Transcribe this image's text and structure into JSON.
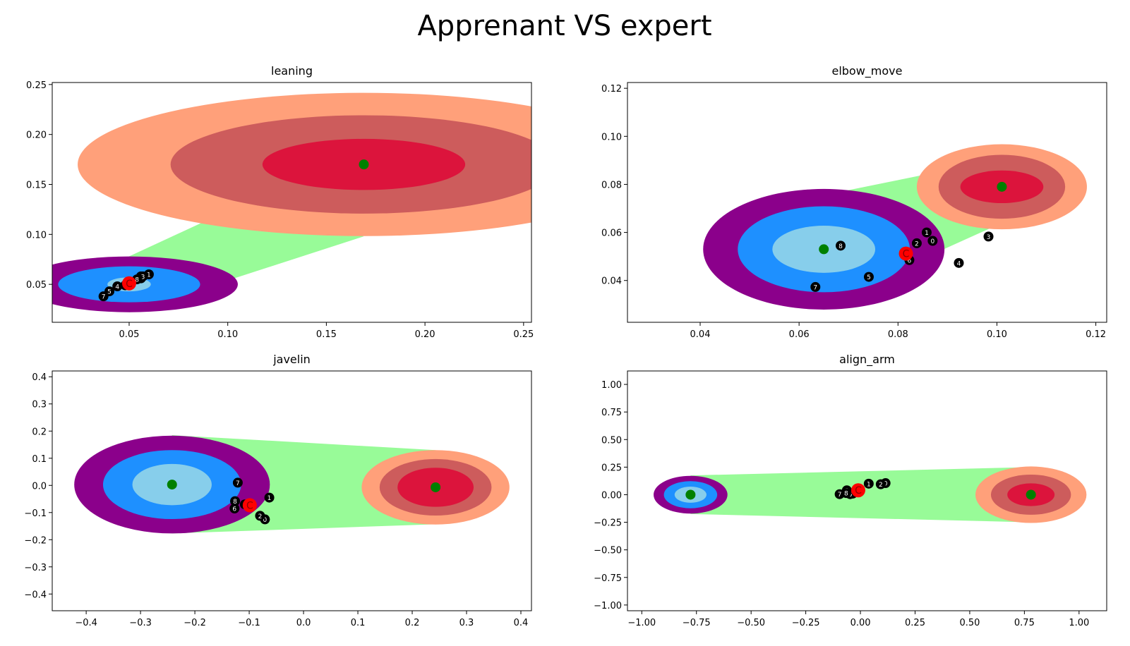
{
  "figure": {
    "title": "Apprenant VS expert"
  },
  "colors": {
    "expert_outer": "#ffa07a",
    "expert_mid": "#cd5c5c",
    "expert_inner": "#dc143c",
    "learner_outer": "#8b008b",
    "learner_mid": "#1e90ff",
    "learner_inner": "#87ceeb",
    "corridor": "#98fb98",
    "center": "#008000",
    "point": "#000000",
    "current": "#ff0000"
  },
  "chart_data": [
    {
      "type": "scatter",
      "title": "leaning",
      "xlim": [
        0.011,
        0.254
      ],
      "ylim": [
        0.012,
        0.252
      ],
      "xticks": [
        0.05,
        0.1,
        0.15,
        0.2,
        0.25
      ],
      "yticks": [
        0.05,
        0.1,
        0.15,
        0.2,
        0.25
      ],
      "xtick_labels": [
        "0.05",
        "0.10",
        "0.15",
        "0.20",
        "0.25"
      ],
      "ytick_labels": [
        "0.05",
        "0.10",
        "0.15",
        "0.20",
        "0.25"
      ],
      "grid": false,
      "learner": {
        "center": [
          0.05,
          0.05
        ],
        "radii": [
          [
            0.0551,
            0.0279
          ],
          [
            0.036,
            0.018
          ],
          [
            0.011,
            0.007
          ]
        ]
      },
      "expert": {
        "center": [
          0.169,
          0.17
        ],
        "radii": [
          [
            0.1451,
            0.0717
          ],
          [
            0.098,
            0.0492
          ],
          [
            0.0514,
            0.0256
          ]
        ]
      },
      "corridor": [
        [
          0.05,
          0.078
        ],
        [
          0.12,
          0.142
        ],
        [
          0.169,
          0.098
        ],
        [
          0.05,
          0.022
        ]
      ],
      "points": [
        {
          "label": "0",
          "x": 0.056,
          "y": 0.058
        },
        {
          "label": "1",
          "x": 0.06,
          "y": 0.06
        },
        {
          "label": "2",
          "x": 0.056,
          "y": 0.056
        },
        {
          "label": "3",
          "x": 0.057,
          "y": 0.058
        },
        {
          "label": "4",
          "x": 0.044,
          "y": 0.048
        },
        {
          "label": "5",
          "x": 0.04,
          "y": 0.043
        },
        {
          "label": "6",
          "x": 0.048,
          "y": 0.049
        },
        {
          "label": "7",
          "x": 0.037,
          "y": 0.038
        },
        {
          "label": "8",
          "x": 0.054,
          "y": 0.055
        }
      ],
      "current": {
        "label": "C",
        "x": 0.05,
        "y": 0.051
      }
    },
    {
      "type": "scatter",
      "title": "elbow_move",
      "xlim": [
        0.0253,
        0.1222
      ],
      "ylim": [
        0.0226,
        0.1224
      ],
      "xticks": [
        0.04,
        0.06,
        0.08,
        0.1,
        0.12
      ],
      "yticks": [
        0.04,
        0.06,
        0.08,
        0.1,
        0.12
      ],
      "xtick_labels": [
        "0.04",
        "0.06",
        "0.08",
        "0.10",
        "0.12"
      ],
      "ytick_labels": [
        "0.04",
        "0.06",
        "0.08",
        "0.10",
        "0.12"
      ],
      "grid": false,
      "learner": {
        "center": [
          0.065,
          0.053
        ],
        "radii": [
          [
            0.0244,
            0.0251
          ],
          [
            0.0174,
            0.0179
          ],
          [
            0.0104,
            0.0098
          ]
        ]
      },
      "expert": {
        "center": [
          0.101,
          0.079
        ],
        "radii": [
          [
            0.0172,
            0.0177
          ],
          [
            0.0128,
            0.0133
          ],
          [
            0.0084,
            0.0068
          ]
        ]
      },
      "corridor": [
        [
          0.065,
          0.0755
        ],
        [
          0.096,
          0.0885
        ],
        [
          0.107,
          0.0695
        ],
        [
          0.065,
          0.0305
        ]
      ],
      "points": [
        {
          "label": "0",
          "x": 0.087,
          "y": 0.0565
        },
        {
          "label": "1",
          "x": 0.0858,
          "y": 0.06
        },
        {
          "label": "2",
          "x": 0.0838,
          "y": 0.0555
        },
        {
          "label": "3",
          "x": 0.0983,
          "y": 0.0583
        },
        {
          "label": "4",
          "x": 0.0923,
          "y": 0.0473
        },
        {
          "label": "5",
          "x": 0.0741,
          "y": 0.0415
        },
        {
          "label": "6",
          "x": 0.0823,
          "y": 0.0485
        },
        {
          "label": "7",
          "x": 0.0633,
          "y": 0.0373
        },
        {
          "label": "8",
          "x": 0.0684,
          "y": 0.0545
        }
      ],
      "current": {
        "label": "C",
        "x": 0.0816,
        "y": 0.0512
      }
    },
    {
      "type": "scatter",
      "title": "javelin",
      "xlim": [
        -0.4625,
        0.4195
      ],
      "ylim": [
        -0.4616,
        0.4214
      ],
      "xticks": [
        -0.4,
        -0.3,
        -0.2,
        -0.1,
        0.0,
        0.1,
        0.2,
        0.3,
        0.4
      ],
      "yticks": [
        -0.4,
        -0.3,
        -0.2,
        -0.1,
        0.0,
        0.1,
        0.2,
        0.3,
        0.4
      ],
      "xtick_labels": [
        "−0.4",
        "−0.3",
        "−0.2",
        "−0.1",
        "0.0",
        "0.1",
        "0.2",
        "0.3",
        "0.4"
      ],
      "ytick_labels": [
        "−0.4",
        "−0.3",
        "−0.2",
        "−0.1",
        "0.0",
        "0.1",
        "0.2",
        "0.3",
        "0.4"
      ],
      "grid": false,
      "learner": {
        "center": [
          -0.242,
          0.003
        ],
        "radii": [
          [
            0.18,
            0.18
          ],
          [
            0.127,
            0.127
          ],
          [
            0.073,
            0.076
          ]
        ]
      },
      "expert": {
        "center": [
          0.243,
          -0.007
        ],
        "radii": [
          [
            0.136,
            0.137
          ],
          [
            0.103,
            0.104
          ],
          [
            0.07,
            0.072
          ]
        ]
      },
      "corridor": [
        [
          -0.242,
          0.185
        ],
        [
          0.243,
          0.13
        ],
        [
          0.243,
          -0.143
        ],
        [
          -0.242,
          -0.177
        ]
      ],
      "points": [
        {
          "label": "0",
          "x": -0.071,
          "y": -0.125
        },
        {
          "label": "1",
          "x": -0.063,
          "y": -0.045
        },
        {
          "label": "2",
          "x": -0.08,
          "y": -0.112
        },
        {
          "label": "3",
          "x": -0.097,
          "y": -0.077
        },
        {
          "label": "4",
          "x": -0.103,
          "y": -0.074
        },
        {
          "label": "5",
          "x": -0.108,
          "y": -0.07
        },
        {
          "label": "6",
          "x": -0.127,
          "y": -0.085
        },
        {
          "label": "7",
          "x": -0.121,
          "y": 0.01
        },
        {
          "label": "8",
          "x": -0.126,
          "y": -0.058
        }
      ],
      "current": {
        "label": "C",
        "x": -0.099,
        "y": -0.073
      }
    },
    {
      "type": "scatter",
      "title": "align_arm",
      "xlim": [
        -1.0655,
        1.1265
      ],
      "ylim": [
        -1.052,
        1.122
      ],
      "xticks": [
        -1.0,
        -0.75,
        -0.5,
        -0.25,
        0.0,
        0.25,
        0.5,
        0.75,
        1.0
      ],
      "yticks": [
        -1.0,
        -0.75,
        -0.5,
        -0.25,
        0.0,
        0.25,
        0.5,
        0.75,
        1.0
      ],
      "xtick_labels": [
        "−1.00",
        "−0.75",
        "−0.50",
        "−0.25",
        "0.00",
        "0.25",
        "0.50",
        "0.75",
        "1.00"
      ],
      "ytick_labels": [
        "−1.00",
        "−0.75",
        "−0.50",
        "−0.25",
        "0.00",
        "0.25",
        "0.50",
        "0.75",
        "1.00"
      ],
      "grid": false,
      "learner": {
        "center": [
          -0.777,
          0.0
        ],
        "radii": [
          [
            0.169,
            0.171
          ],
          [
            0.122,
            0.123
          ],
          [
            0.073,
            0.073
          ]
        ]
      },
      "expert": {
        "center": [
          0.78,
          0.0
        ],
        "radii": [
          [
            0.254,
            0.256
          ],
          [
            0.183,
            0.182
          ],
          [
            0.108,
            0.103
          ]
        ]
      },
      "corridor": [
        [
          -0.777,
          0.175
        ],
        [
          0.78,
          0.25
        ],
        [
          0.78,
          -0.25
        ],
        [
          -0.777,
          -0.175
        ]
      ],
      "points": [
        {
          "label": "0",
          "x": 0.115,
          "y": 0.105
        },
        {
          "label": "1",
          "x": 0.038,
          "y": 0.1
        },
        {
          "label": "2",
          "x": 0.093,
          "y": 0.095
        },
        {
          "label": "3",
          "x": -0.062,
          "y": 0.04
        },
        {
          "label": "4",
          "x": -0.035,
          "y": 0.01
        },
        {
          "label": "5",
          "x": -0.003,
          "y": 0.04
        },
        {
          "label": "6",
          "x": -0.047,
          "y": 0.005
        },
        {
          "label": "7",
          "x": -0.095,
          "y": 0.005
        },
        {
          "label": "8",
          "x": -0.065,
          "y": 0.015
        }
      ],
      "current": {
        "label": "C",
        "x": -0.01,
        "y": 0.04
      }
    }
  ]
}
